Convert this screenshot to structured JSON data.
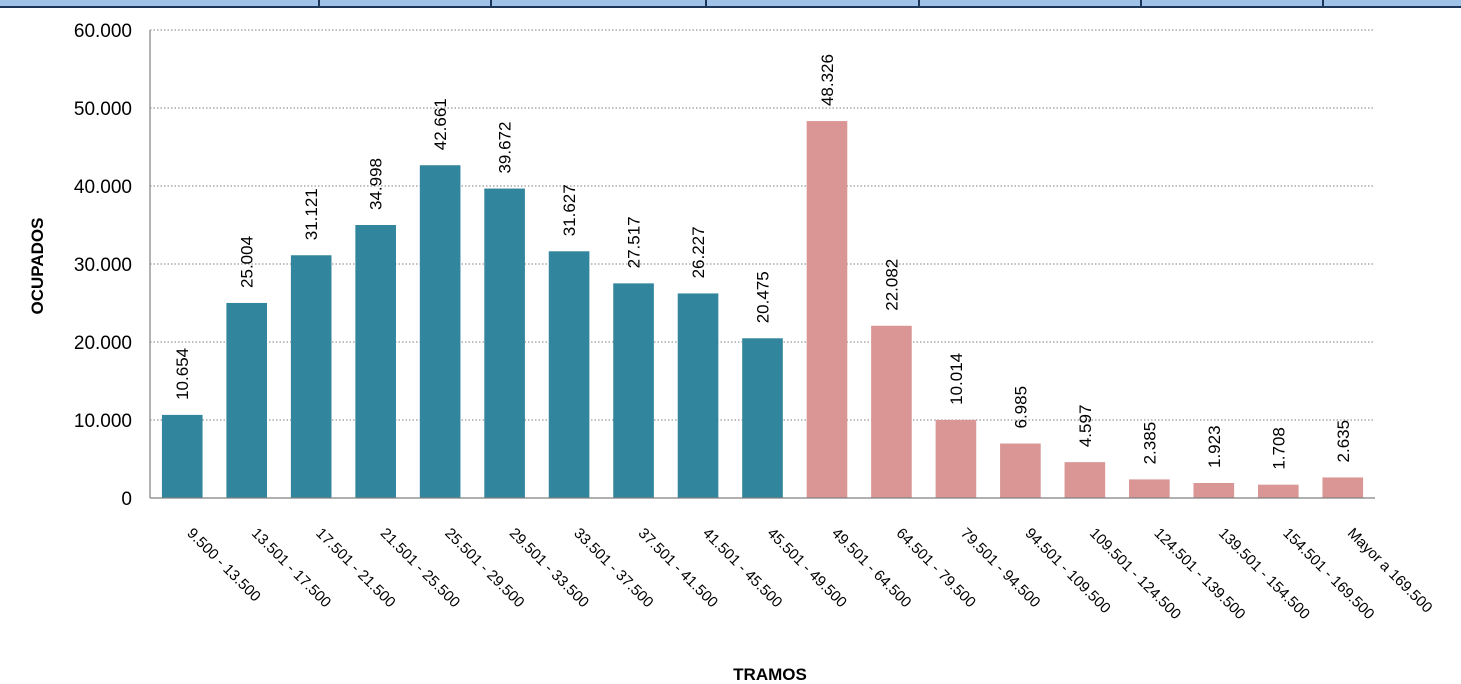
{
  "chart_data": {
    "type": "bar",
    "title": "",
    "xlabel": "TRAMOS",
    "ylabel": "OCUPADOS",
    "ylim": [
      0,
      60000
    ],
    "yticks": [
      0,
      10000,
      20000,
      30000,
      40000,
      50000,
      60000
    ],
    "ytick_labels": [
      "0",
      "10.000",
      "20.000",
      "30.000",
      "40.000",
      "50.000",
      "60.000"
    ],
    "grid": "horizontal dotted",
    "categories": [
      "9.500 - 13.500",
      "13.501 - 17.500",
      "17.501 - 21.500",
      "21.501 - 25.500",
      "25.501 - 29.500",
      "29.501 - 33.500",
      "33.501 - 37.500",
      "37.501 - 41.500",
      "41.501 - 45.500",
      "45.501 - 49.500",
      "49.501 - 64.500",
      "64.501 - 79.500",
      "79.501 - 94.500",
      "94.501 - 109.500",
      "109.501 - 124.500",
      "124.501 - 139.500",
      "139.501 - 154.500",
      "154.501 - 169.500",
      "Mayor a 169.500"
    ],
    "values": [
      10654,
      25004,
      31121,
      34998,
      42661,
      39672,
      31627,
      27517,
      26227,
      20475,
      48326,
      22082,
      10014,
      6985,
      4597,
      2385,
      1923,
      1708,
      2635
    ],
    "value_labels": [
      "10.654",
      "25.004",
      "31.121",
      "34.998",
      "42.661",
      "39.672",
      "31.627",
      "27.517",
      "26.227",
      "20.475",
      "48.326",
      "22.082",
      "10.014",
      "6.985",
      "4.597",
      "2.385",
      "1.923",
      "1.708",
      "2.635"
    ],
    "bar_colors": [
      "#31859c",
      "#31859c",
      "#31859c",
      "#31859c",
      "#31859c",
      "#31859c",
      "#31859c",
      "#31859c",
      "#31859c",
      "#31859c",
      "#d99694",
      "#d99694",
      "#d99694",
      "#d99694",
      "#d99694",
      "#d99694",
      "#d99694",
      "#d99694",
      "#d99694"
    ]
  }
}
